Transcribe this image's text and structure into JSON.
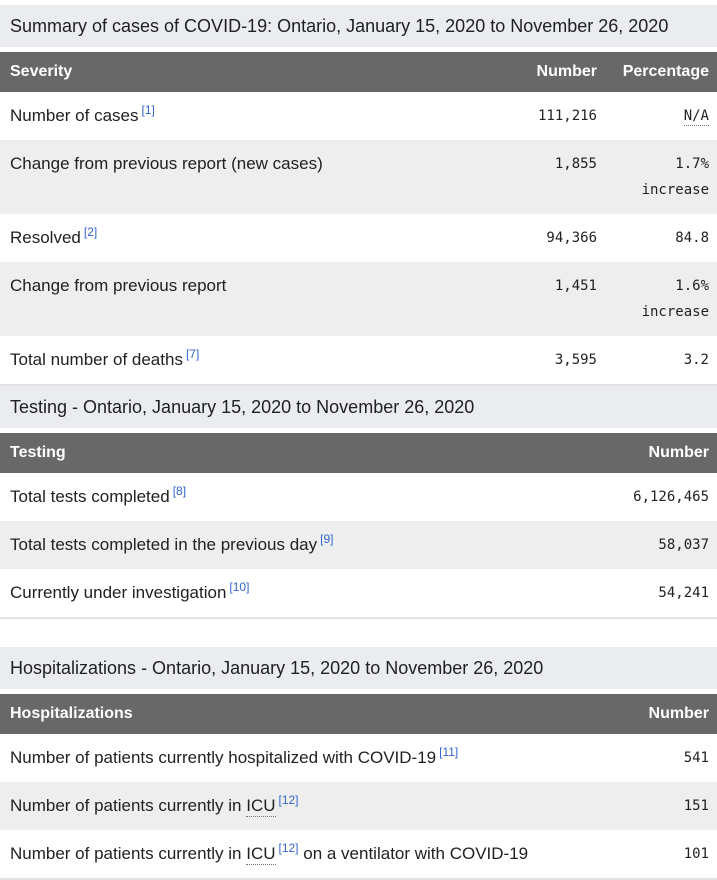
{
  "colors": {
    "caption_bg": "#eaecf0",
    "header_bg": "#686868",
    "header_text": "#ffffff",
    "zebra_row_bg": "#eeeeee",
    "body_text": "#202122",
    "reference_link": "#3366cc",
    "abbr_underline": "#72777d"
  },
  "tables": [
    {
      "caption": "Summary of cases of COVID-19: Ontario, January 15, 2020 to November 26, 2020",
      "columns": [
        "Severity",
        "Number",
        "Percentage"
      ],
      "rows": [
        {
          "label_pre": "Number of cases",
          "ref": "[1]",
          "number": "111,216",
          "pct": "N/A"
        },
        {
          "label_pre": "Change from previous report (new cases)",
          "number": "1,855",
          "pct": "1.7%",
          "pct_note": "increase"
        },
        {
          "label_pre": "Resolved",
          "ref": "[2]",
          "number": "94,366",
          "pct": "84.8"
        },
        {
          "label_pre": "Change from previous report",
          "number": "1,451",
          "pct": "1.6%",
          "pct_note": "increase"
        },
        {
          "label_pre": "Total number of deaths",
          "ref": "[7]",
          "number": "3,595",
          "pct": "3.2"
        }
      ]
    },
    {
      "caption": "Testing - Ontario, January 15, 2020 to November 26, 2020",
      "columns": [
        "Testing",
        "Number"
      ],
      "rows": [
        {
          "label_pre": "Total tests completed",
          "ref": "[8]",
          "number": "6,126,465"
        },
        {
          "label_pre": "Total tests completed in the previous day",
          "ref": "[9]",
          "number": "58,037"
        },
        {
          "label_pre": "Currently under investigation",
          "ref": "[10]",
          "number": "54,241"
        }
      ]
    },
    {
      "caption": "Hospitalizations - Ontario, January 15, 2020 to November 26, 2020",
      "columns": [
        "Hospitalizations",
        "Number"
      ],
      "rows": [
        {
          "label_pre": "Number of patients currently hospitalized with COVID-19",
          "ref": "[11]",
          "number": "541"
        },
        {
          "label_pre": "Number of patients currently in ",
          "abbr": "ICU",
          "ref": "[12]",
          "number": "151"
        },
        {
          "label_pre": "Number of patients currently in ",
          "abbr": "ICU",
          "ref": "[12]",
          "label_post": " on a ventilator with COVID-19",
          "number": "101"
        }
      ]
    }
  ]
}
